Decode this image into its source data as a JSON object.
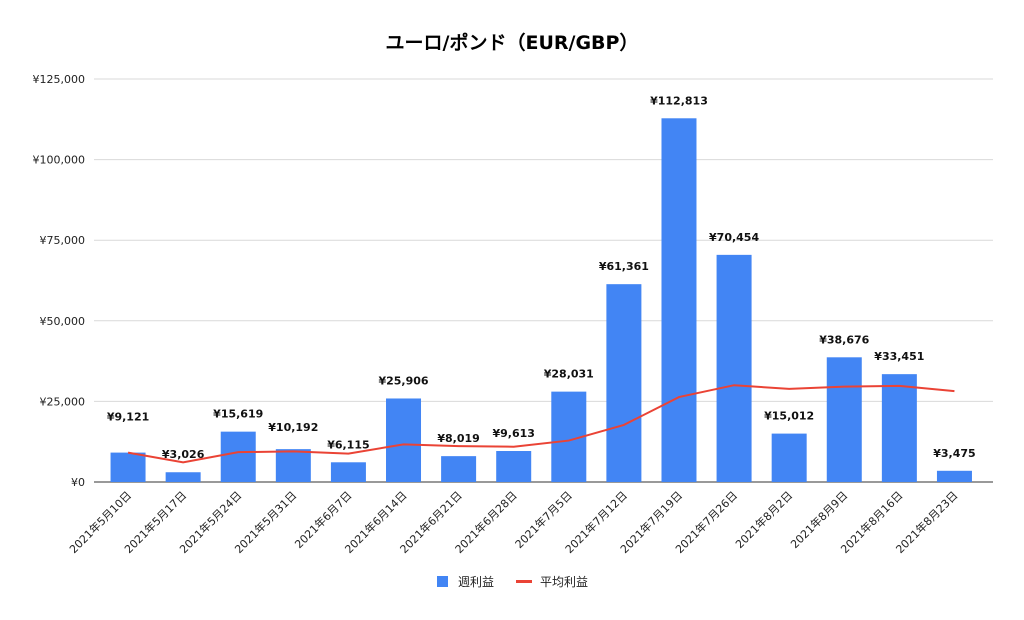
{
  "chart_data": {
    "type": "bar",
    "title": "ユーロ/ポンド（EUR/GBP）",
    "xlabel": "",
    "ylabel": "",
    "ylim": [
      0,
      125000
    ],
    "yticks": [
      0,
      25000,
      50000,
      75000,
      100000,
      125000
    ],
    "ytick_labels": [
      "¥0",
      "¥25,000",
      "¥50,000",
      "¥75,000",
      "¥100,000",
      "¥125,000"
    ],
    "grid": true,
    "legend_position": "bottom",
    "categories": [
      "2021年5月10日",
      "2021年5月17日",
      "2021年5月24日",
      "2021年5月31日",
      "2021年6月7日",
      "2021年6月14日",
      "2021年6月21日",
      "2021年6月28日",
      "2021年7月5日",
      "2021年7月12日",
      "2021年7月19日",
      "2021年7月26日",
      "2021年8月2日",
      "2021年8月9日",
      "2021年8月16日",
      "2021年8月23日"
    ],
    "series": [
      {
        "name": "週利益",
        "type": "bar",
        "color": "#4285f4",
        "values": [
          9121,
          3026,
          15619,
          10192,
          6115,
          25906,
          8019,
          9613,
          28031,
          61361,
          112813,
          70454,
          15012,
          38676,
          33451,
          3475
        ],
        "data_labels": [
          "¥9,121",
          "¥3,026",
          "¥15,619",
          "¥10,192",
          "¥6,115",
          "¥25,906",
          "¥8,019",
          "¥9,613",
          "¥28,031",
          "¥61,361",
          "¥112,813",
          "¥70,454",
          "¥15,012",
          "¥38,676",
          "¥33,451",
          "¥3,475"
        ]
      },
      {
        "name": "平均利益",
        "type": "line",
        "color": "#ea4335",
        "values": [
          9121,
          6074,
          9255,
          9490,
          8815,
          11663,
          11143,
          10951,
          12849,
          17700,
          26347,
          30023,
          28868,
          29568,
          29827,
          28180
        ]
      }
    ]
  }
}
